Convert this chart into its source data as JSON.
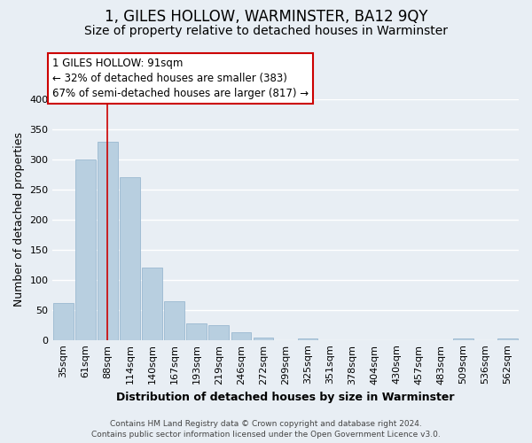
{
  "title": "1, GILES HOLLOW, WARMINSTER, BA12 9QY",
  "subtitle": "Size of property relative to detached houses in Warminster",
  "xlabel": "Distribution of detached houses by size in Warminster",
  "ylabel": "Number of detached properties",
  "categories": [
    "35sqm",
    "61sqm",
    "88sqm",
    "114sqm",
    "140sqm",
    "167sqm",
    "193sqm",
    "219sqm",
    "246sqm",
    "272sqm",
    "299sqm",
    "325sqm",
    "351sqm",
    "378sqm",
    "404sqm",
    "430sqm",
    "457sqm",
    "483sqm",
    "509sqm",
    "536sqm",
    "562sqm"
  ],
  "values": [
    62,
    300,
    330,
    270,
    120,
    65,
    27,
    25,
    13,
    4,
    0,
    2,
    0,
    0,
    0,
    0,
    0,
    0,
    3,
    0,
    2
  ],
  "bar_color": "#b8cfe0",
  "bar_edgecolor": "#9ab8d0",
  "highlight_bar_index": 2,
  "highlight_line_color": "#cc0000",
  "ylim": [
    0,
    400
  ],
  "yticks": [
    0,
    50,
    100,
    150,
    200,
    250,
    300,
    350,
    400
  ],
  "annotation_title": "1 GILES HOLLOW: 91sqm",
  "annotation_line1": "← 32% of detached houses are smaller (383)",
  "annotation_line2": "67% of semi-detached houses are larger (817) →",
  "annotation_box_facecolor": "#ffffff",
  "annotation_box_edgecolor": "#cc0000",
  "footer_line1": "Contains HM Land Registry data © Crown copyright and database right 2024.",
  "footer_line2": "Contains public sector information licensed under the Open Government Licence v3.0.",
  "background_color": "#e8eef4",
  "grid_color": "#ffffff",
  "title_fontsize": 12,
  "subtitle_fontsize": 10,
  "ylabel_fontsize": 9,
  "xlabel_fontsize": 9,
  "tick_fontsize": 8,
  "annotation_fontsize": 8.5,
  "footer_fontsize": 6.5
}
